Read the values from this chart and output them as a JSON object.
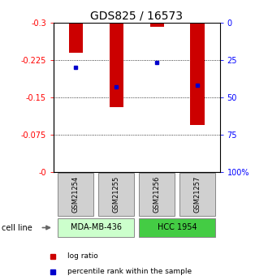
{
  "title": "GDS825 / 16573",
  "samples": [
    "GSM21254",
    "GSM21255",
    "GSM21256",
    "GSM21257"
  ],
  "log_ratios": [
    -0.24,
    -0.13,
    -0.292,
    -0.095
  ],
  "percentile_ranks": [
    30,
    43,
    27,
    42
  ],
  "ylim_left": [
    0,
    -0.3
  ],
  "ylim_right": [
    100,
    0
  ],
  "yticks_left": [
    0,
    -0.075,
    -0.15,
    -0.225,
    -0.3
  ],
  "yticks_right": [
    100,
    75,
    50,
    25,
    0
  ],
  "ytick_labels_left": [
    "-0",
    "-0.075",
    "-0.15",
    "-0.225",
    "-0.3"
  ],
  "ytick_labels_right": [
    "100%",
    "75",
    "50",
    "25",
    "0"
  ],
  "bar_color": "#cc0000",
  "dot_color": "#0000cc",
  "group1_label": "MDA-MB-436",
  "group2_label": "HCC 1954",
  "group1_color": "#ccffcc",
  "group2_color": "#44cc44",
  "cell_line_label": "cell line",
  "legend_red": "log ratio",
  "legend_blue": "percentile rank within the sample",
  "sample_box_color": "#d0d0d0",
  "bar_width": 0.35,
  "title_fontsize": 10,
  "tick_fontsize": 7,
  "sample_fontsize": 6,
  "cellline_fontsize": 7,
  "legend_fontsize": 6.5
}
